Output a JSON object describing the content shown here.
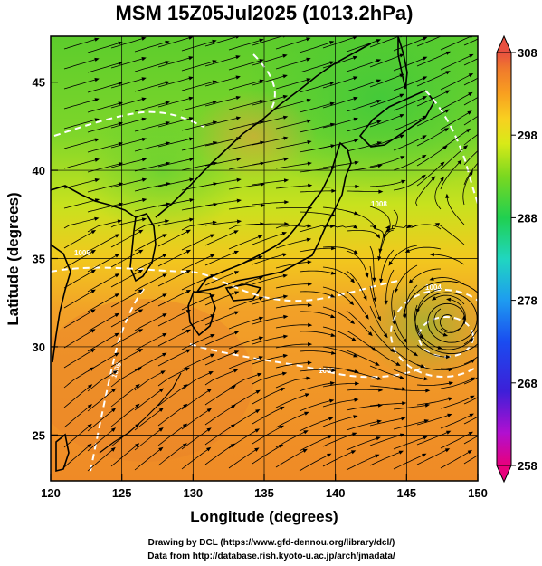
{
  "title": "MSM 15Z05Jul2025 (1013.2hPa)",
  "axes": {
    "xlabel": "Longitude (degrees)",
    "ylabel": "Latitude  (degrees)",
    "xticks": [
      "120",
      "125",
      "130",
      "135",
      "140",
      "145",
      "150"
    ],
    "yticks": [
      "25",
      "30",
      "35",
      "40",
      "45"
    ],
    "xrange": [
      120,
      150
    ],
    "yrange": [
      22.4,
      47.6
    ]
  },
  "colorbar": {
    "labels": [
      "308",
      "298",
      "288",
      "278",
      "268",
      "258"
    ],
    "range": [
      258,
      308
    ],
    "colors": [
      "#e8007c",
      "#b010d0",
      "#3d1fd8",
      "#1a4cf0",
      "#1e9cf0",
      "#20d6c0",
      "#20d050",
      "#7ad820",
      "#d8ea18",
      "#f8d020",
      "#f8a020",
      "#f07a2c",
      "#e85040"
    ]
  },
  "contour_labels": [
    "1008",
    "1008",
    "1008",
    "1008",
    "1012",
    "1004",
    "1008"
  ],
  "typhoon_center": {
    "lon": 148,
    "lat": 31.5
  },
  "credits": {
    "line1": "Drawing by DCL (https://www.gfd-dennou.org/library/dcl/)",
    "line2": "Data from http://database.rish.kyoto-u.ac.jp/arch/jmadata/"
  }
}
